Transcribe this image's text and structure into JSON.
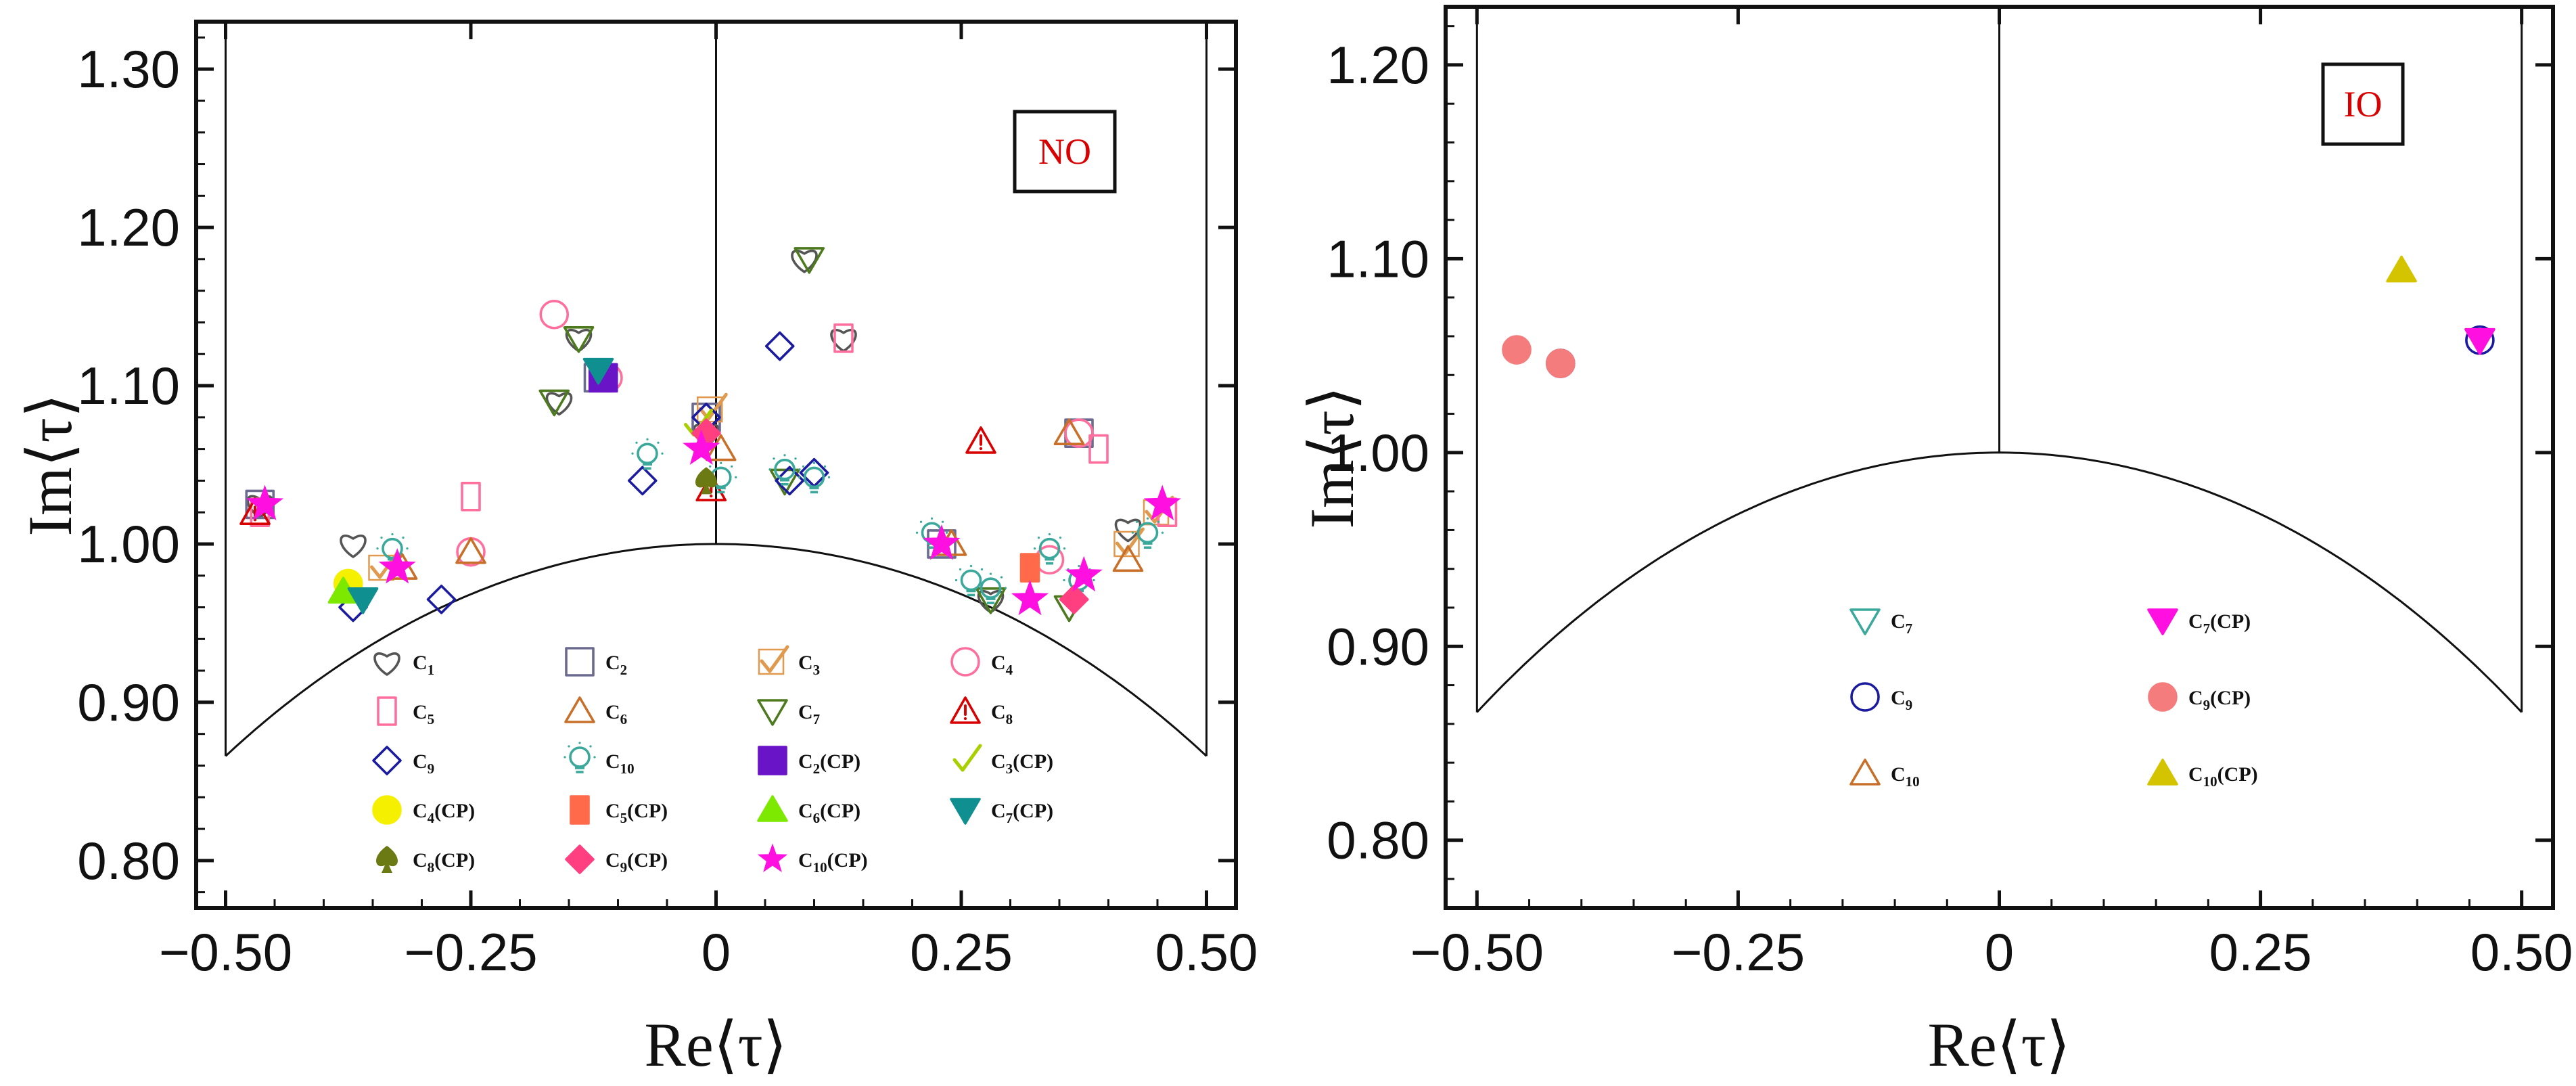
{
  "chart_data": [
    {
      "type": "scatter",
      "title": "",
      "xlabel": "Re⟨τ⟩",
      "ylabel": "Im⟨τ⟩",
      "xlim": [
        -0.53,
        0.53
      ],
      "ylim": [
        0.77,
        1.33
      ],
      "xticks": [
        -0.5,
        -0.25,
        0,
        0.25,
        0.5
      ],
      "xtick_labels": [
        "−0.50",
        "−0.25",
        "0",
        "0.25",
        "0.50"
      ],
      "yticks": [
        0.8,
        0.9,
        1.0,
        1.1,
        1.2,
        1.3
      ],
      "ytick_labels": [
        "0.80",
        "0.90",
        "1.00",
        "1.10",
        "1.20",
        "1.30"
      ],
      "badge": "NO",
      "grid": false,
      "legend": "inside, bottom",
      "legend_entries": [
        {
          "name": "C1",
          "sub": "1",
          "marker": "heart",
          "color": "#555555",
          "filled": false
        },
        {
          "name": "C2",
          "sub": "2",
          "marker": "square",
          "color": "#6b6b90",
          "filled": false
        },
        {
          "name": "C3",
          "sub": "3",
          "marker": "check",
          "color": "#e09a50",
          "filled": false
        },
        {
          "name": "C4",
          "sub": "4",
          "marker": "circle",
          "color": "#ff6f9e",
          "filled": false
        },
        {
          "name": "C5",
          "sub": "5",
          "marker": "rect",
          "color": "#ff6f9e",
          "filled": false
        },
        {
          "name": "C6",
          "sub": "6",
          "marker": "triangle",
          "color": "#c8702a",
          "filled": false
        },
        {
          "name": "C7",
          "sub": "7",
          "marker": "triangle-down",
          "color": "#4d7a1e",
          "filled": false
        },
        {
          "name": "C8",
          "sub": "8",
          "marker": "warning",
          "color": "#d80000",
          "filled": false
        },
        {
          "name": "C9",
          "sub": "9",
          "marker": "diamond",
          "color": "#1b1ba0",
          "filled": false
        },
        {
          "name": "C10",
          "sub": "10",
          "marker": "bulb",
          "color": "#3aa89a",
          "filled": false
        },
        {
          "name": "C2(CP)",
          "sub": "2",
          "suffix": "(CP)",
          "marker": "square",
          "color": "#6a14c8",
          "filled": true
        },
        {
          "name": "C3(CP)",
          "sub": "3",
          "suffix": "(CP)",
          "marker": "check",
          "color": "#a8d000",
          "filled": true
        },
        {
          "name": "C4(CP)",
          "sub": "4",
          "suffix": "(CP)",
          "marker": "circle",
          "color": "#f5f000",
          "filled": true
        },
        {
          "name": "C5(CP)",
          "sub": "5",
          "suffix": "(CP)",
          "marker": "rect",
          "color": "#ff6b4a",
          "filled": true
        },
        {
          "name": "C6(CP)",
          "sub": "6",
          "suffix": "(CP)",
          "marker": "triangle",
          "color": "#7de800",
          "filled": true
        },
        {
          "name": "C7(CP)",
          "sub": "7",
          "suffix": "(CP)",
          "marker": "triangle-down",
          "color": "#0f8f8f",
          "filled": true
        },
        {
          "name": "C8(CP)",
          "sub": "8",
          "suffix": "(CP)",
          "marker": "spade",
          "color": "#6b7a12",
          "filled": true
        },
        {
          "name": "C9(CP)",
          "sub": "9",
          "suffix": "(CP)",
          "marker": "diamond",
          "color": "#ff3f7f",
          "filled": true
        },
        {
          "name": "C10(CP)",
          "sub": "10",
          "suffix": "(CP)",
          "marker": "star",
          "color": "#ff10e0",
          "filled": true
        }
      ],
      "points": [
        {
          "series": "C1",
          "x": -0.465,
          "y": 1.025
        },
        {
          "series": "C1",
          "x": -0.37,
          "y": 1.0
        },
        {
          "series": "C1",
          "x": -0.16,
          "y": 1.09
        },
        {
          "series": "C1",
          "x": -0.14,
          "y": 1.13
        },
        {
          "series": "C1",
          "x": -0.01,
          "y": 1.07
        },
        {
          "series": "C1",
          "x": 0.09,
          "y": 1.18
        },
        {
          "series": "C1",
          "x": 0.13,
          "y": 1.13
        },
        {
          "series": "C1",
          "x": 0.28,
          "y": 0.965
        },
        {
          "series": "C1",
          "x": 0.42,
          "y": 1.01
        },
        {
          "series": "C2",
          "x": -0.465,
          "y": 1.025
        },
        {
          "series": "C2",
          "x": -0.12,
          "y": 1.105
        },
        {
          "series": "C2",
          "x": -0.01,
          "y": 1.08
        },
        {
          "series": "C2",
          "x": 0.23,
          "y": 1.0
        },
        {
          "series": "C2",
          "x": 0.37,
          "y": 1.07
        },
        {
          "series": "C3",
          "x": -0.34,
          "y": 0.985
        },
        {
          "series": "C3",
          "x": -0.005,
          "y": 1.085
        },
        {
          "series": "C3",
          "x": 0.42,
          "y": 1.0
        },
        {
          "series": "C3",
          "x": 0.45,
          "y": 1.02
        },
        {
          "series": "C4",
          "x": -0.165,
          "y": 1.145
        },
        {
          "series": "C4",
          "x": -0.11,
          "y": 1.105
        },
        {
          "series": "C4",
          "x": -0.25,
          "y": 0.995
        },
        {
          "series": "C4",
          "x": 0.37,
          "y": 1.07
        },
        {
          "series": "C4",
          "x": 0.34,
          "y": 0.99
        },
        {
          "series": "C5",
          "x": -0.25,
          "y": 1.03
        },
        {
          "series": "C5",
          "x": 0.13,
          "y": 1.13
        },
        {
          "series": "C5",
          "x": 0.39,
          "y": 1.06
        },
        {
          "series": "C5",
          "x": 0.46,
          "y": 1.02
        },
        {
          "series": "C5",
          "x": -0.465,
          "y": 1.02
        },
        {
          "series": "C6",
          "x": -0.25,
          "y": 0.995
        },
        {
          "series": "C6",
          "x": -0.32,
          "y": 0.985
        },
        {
          "series": "C6",
          "x": 0.005,
          "y": 1.06
        },
        {
          "series": "C6",
          "x": 0.24,
          "y": 1.0
        },
        {
          "series": "C6",
          "x": 0.36,
          "y": 1.07
        },
        {
          "series": "C6",
          "x": 0.42,
          "y": 0.99
        },
        {
          "series": "C7",
          "x": -0.165,
          "y": 1.09
        },
        {
          "series": "C7",
          "x": -0.14,
          "y": 1.13
        },
        {
          "series": "C7",
          "x": 0.095,
          "y": 1.18
        },
        {
          "series": "C7",
          "x": 0.07,
          "y": 1.04
        },
        {
          "series": "C7",
          "x": 0.36,
          "y": 0.96
        },
        {
          "series": "C7",
          "x": 0.28,
          "y": 0.965
        },
        {
          "series": "C8",
          "x": -0.47,
          "y": 1.02
        },
        {
          "series": "C8",
          "x": 0.27,
          "y": 1.065
        },
        {
          "series": "C8",
          "x": -0.005,
          "y": 1.035
        },
        {
          "series": "C9",
          "x": -0.37,
          "y": 0.96
        },
        {
          "series": "C9",
          "x": -0.28,
          "y": 0.965
        },
        {
          "series": "C9",
          "x": -0.075,
          "y": 1.04
        },
        {
          "series": "C9",
          "x": 0.065,
          "y": 1.125
        },
        {
          "series": "C9",
          "x": 0.075,
          "y": 1.04
        },
        {
          "series": "C9",
          "x": 0.1,
          "y": 1.045
        },
        {
          "series": "C9",
          "x": -0.01,
          "y": 1.08
        },
        {
          "series": "C10",
          "x": -0.07,
          "y": 1.055
        },
        {
          "series": "C10",
          "x": 0.005,
          "y": 1.04
        },
        {
          "series": "C10",
          "x": 0.07,
          "y": 1.045
        },
        {
          "series": "C10",
          "x": 0.1,
          "y": 1.04
        },
        {
          "series": "C10",
          "x": 0.26,
          "y": 0.975
        },
        {
          "series": "C10",
          "x": 0.28,
          "y": 0.97
        },
        {
          "series": "C10",
          "x": 0.34,
          "y": 0.995
        },
        {
          "series": "C10",
          "x": 0.37,
          "y": 0.975
        },
        {
          "series": "C10",
          "x": 0.22,
          "y": 1.005
        },
        {
          "series": "C10",
          "x": -0.33,
          "y": 0.995
        },
        {
          "series": "C10",
          "x": 0.44,
          "y": 1.005
        },
        {
          "series": "C2(CP)",
          "x": -0.115,
          "y": 1.105
        },
        {
          "series": "C3(CP)",
          "x": -0.02,
          "y": 1.075
        },
        {
          "series": "C4(CP)",
          "x": -0.375,
          "y": 0.975
        },
        {
          "series": "C5(CP)",
          "x": 0.32,
          "y": 0.985
        },
        {
          "series": "C6(CP)",
          "x": -0.38,
          "y": 0.97
        },
        {
          "series": "C7(CP)",
          "x": -0.12,
          "y": 1.11
        },
        {
          "series": "C7(CP)",
          "x": -0.36,
          "y": 0.965
        },
        {
          "series": "C8(CP)",
          "x": -0.01,
          "y": 1.04
        },
        {
          "series": "C9(CP)",
          "x": -0.01,
          "y": 1.07
        },
        {
          "series": "C9(CP)",
          "x": 0.365,
          "y": 0.965
        },
        {
          "series": "C10(CP)",
          "x": -0.46,
          "y": 1.025
        },
        {
          "series": "C10(CP)",
          "x": -0.325,
          "y": 0.985
        },
        {
          "series": "C10(CP)",
          "x": -0.015,
          "y": 1.06
        },
        {
          "series": "C10(CP)",
          "x": 0.23,
          "y": 1.0
        },
        {
          "series": "C10(CP)",
          "x": 0.32,
          "y": 0.965
        },
        {
          "series": "C10(CP)",
          "x": 0.375,
          "y": 0.98
        },
        {
          "series": "C10(CP)",
          "x": 0.455,
          "y": 1.025
        }
      ]
    },
    {
      "type": "scatter",
      "title": "",
      "xlabel": "Re⟨τ⟩",
      "ylabel": "Im⟨τ⟩",
      "xlim": [
        -0.53,
        0.53
      ],
      "ylim": [
        0.765,
        1.23
      ],
      "xticks": [
        -0.5,
        -0.25,
        0,
        0.25,
        0.5
      ],
      "xtick_labels": [
        "−0.50",
        "−0.25",
        "0",
        "0.25",
        "0.50"
      ],
      "yticks": [
        0.8,
        0.9,
        1.0,
        1.1,
        1.2
      ],
      "ytick_labels": [
        "0.80",
        "0.90",
        "1.00",
        "1.10",
        "1.20"
      ],
      "badge": "IO",
      "grid": false,
      "legend": "inside, bottom",
      "legend_entries": [
        {
          "name": "C7",
          "sub": "7",
          "marker": "triangle-down",
          "color": "#3aa89a",
          "filled": false
        },
        {
          "name": "C7(CP)",
          "sub": "7",
          "suffix": "(CP)",
          "marker": "triangle-down",
          "color": "#ff10e0",
          "filled": true
        },
        {
          "name": "C9",
          "sub": "9",
          "marker": "circle",
          "color": "#1b1ba0",
          "filled": false
        },
        {
          "name": "C9(CP)",
          "sub": "9",
          "suffix": "(CP)",
          "marker": "circle",
          "color": "#f47c7c",
          "filled": true
        },
        {
          "name": "C10",
          "sub": "10",
          "marker": "triangle",
          "color": "#c8702a",
          "filled": false
        },
        {
          "name": "C10(CP)",
          "sub": "10",
          "suffix": "(CP)",
          "marker": "triangle",
          "color": "#d4c400",
          "filled": true
        }
      ],
      "points": [
        {
          "series": "C9",
          "x": -0.42,
          "y": 1.046
        },
        {
          "series": "C9",
          "x": 0.46,
          "y": 1.058
        },
        {
          "series": "C9(CP)",
          "x": -0.462,
          "y": 1.053
        },
        {
          "series": "C9(CP)",
          "x": -0.42,
          "y": 1.046
        },
        {
          "series": "C7(CP)",
          "x": 0.46,
          "y": 1.058
        },
        {
          "series": "C10(CP)",
          "x": 0.385,
          "y": 1.094
        }
      ]
    }
  ]
}
